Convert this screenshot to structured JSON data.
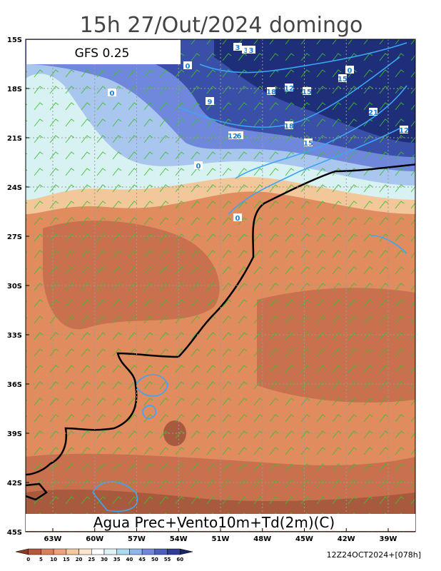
{
  "header": {
    "title": "15h 27/Out/2024 domingo",
    "model": "GFS 0.25"
  },
  "lat_ticks": [
    "15S",
    "18S",
    "21S",
    "24S",
    "27S",
    "30S",
    "33S",
    "36S",
    "39S",
    "42S",
    "45S"
  ],
  "lon_ticks": [
    "63W",
    "60W",
    "57W",
    "54W",
    "51W",
    "48W",
    "45W",
    "42W",
    "39W"
  ],
  "caption": "Agua Prec+Vento10m+Td(2m)(C)",
  "colorbar": [
    "0",
    "5",
    "10",
    "15",
    "20",
    "25",
    "30",
    "35",
    "40",
    "45",
    "50",
    "55",
    "60"
  ],
  "run_info": "12Z24OCT2024+[078h]",
  "contour_labels": [
    "3",
    "3",
    "3",
    "0",
    "0",
    "15",
    "12",
    "18",
    "15",
    "21",
    "12",
    "18",
    "15",
    "0",
    "9",
    "6",
    "12",
    "0",
    "0"
  ]
}
